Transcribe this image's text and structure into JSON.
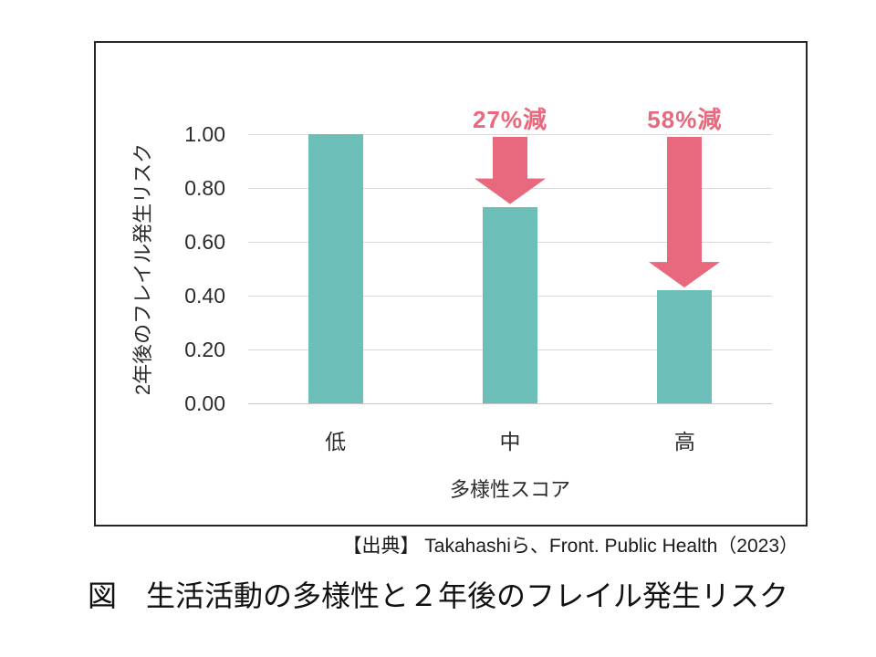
{
  "chart_data": {
    "type": "bar",
    "categories": [
      "低",
      "中",
      "高"
    ],
    "values": [
      1.0,
      0.73,
      0.42
    ],
    "title": "",
    "xlabel": "多様性スコア",
    "ylabel": "2年後のフレイル発生リスク",
    "ylim": [
      0,
      1.0
    ],
    "yticks": [
      0.0,
      0.2,
      0.4,
      0.6,
      0.8,
      1.0
    ],
    "ytick_labels": [
      "0.00",
      "0.20",
      "0.40",
      "0.60",
      "0.80",
      "1.00"
    ],
    "grid": true,
    "legend": false,
    "bar_color": "#6CBEB8",
    "annotation_color": "#E8697E",
    "annotations": [
      {
        "category": "中",
        "category_index": 1,
        "label": "27%減",
        "arrow_from": 1.0,
        "arrow_to": 0.73
      },
      {
        "category": "高",
        "category_index": 2,
        "label": "58%減",
        "arrow_from": 1.0,
        "arrow_to": 0.42
      }
    ]
  },
  "caption": {
    "source": "【出典】 Takahashiら、Front. Public Health（2023）",
    "title": "図　生活活動の多様性と２年後のフレイル発生リスク"
  },
  "colors": {
    "bar": "#6CBEB8",
    "annotation": "#E8697E",
    "gridline": "#d9d9d9",
    "frame_border": "#262626",
    "background": "#ffffff"
  }
}
